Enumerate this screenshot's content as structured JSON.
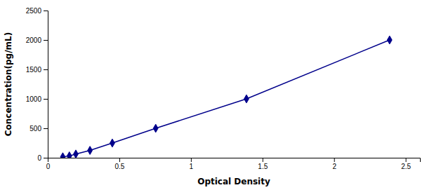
{
  "chart_data": {
    "type": "line",
    "x": [
      0.105,
      0.151,
      0.196,
      0.295,
      0.451,
      0.754,
      1.388,
      2.388
    ],
    "values": [
      15.6,
      31.25,
      62.5,
      125,
      250,
      500,
      1000,
      2000
    ],
    "color": "#00008B",
    "marker": "diamond",
    "line_style": "solid",
    "xlabel": "Optical Density",
    "ylabel": "Concentration(pg/mL)",
    "xlim": [
      0.0,
      2.6
    ],
    "ylim": [
      0,
      2500
    ],
    "xticks": [
      0,
      0.5,
      1,
      1.5,
      2,
      2.5
    ],
    "yticks": [
      0,
      500,
      1000,
      1500,
      2000,
      2500
    ]
  }
}
